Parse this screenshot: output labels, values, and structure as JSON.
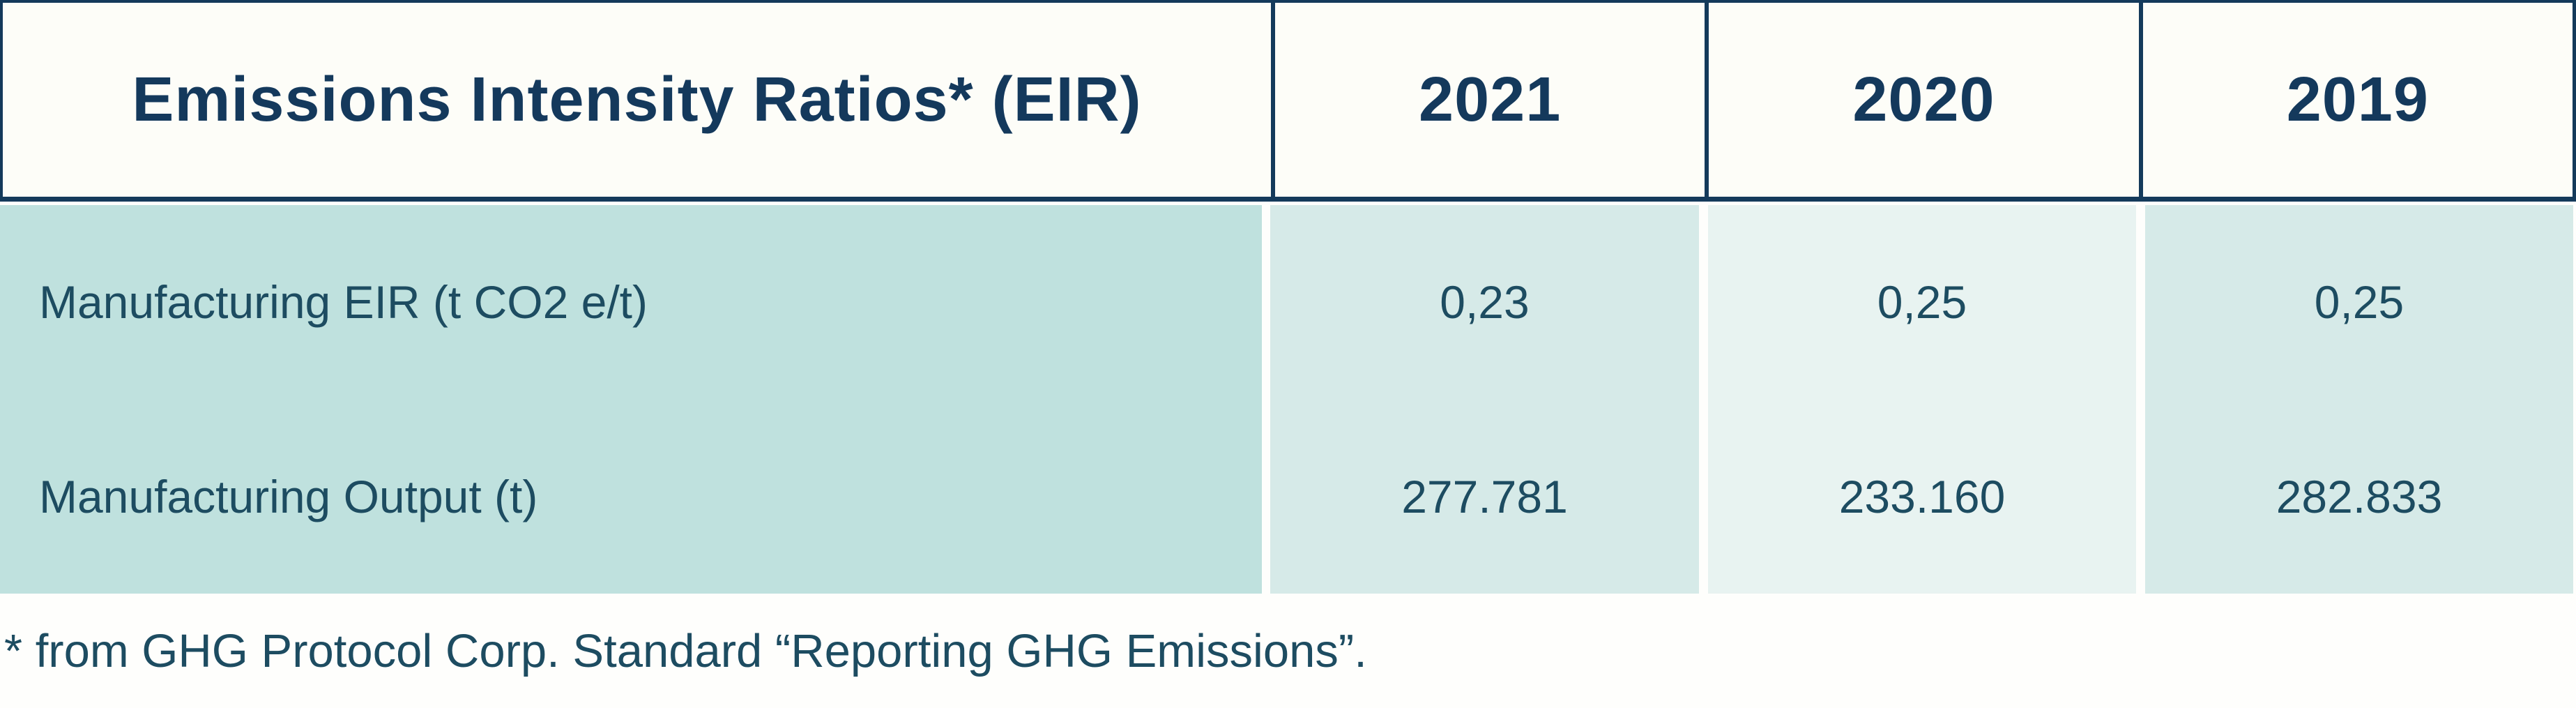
{
  "colors": {
    "border_navy": "#143a5b",
    "header_text": "#14395c",
    "body_text": "#1d4c61",
    "header_bg": "#fdfdf8",
    "label_column_bg": "#bfe1de",
    "year_column_bg": "#d6eae8",
    "year_column_alt_bg": "#e8f3f1",
    "page_bg": "#fefefc"
  },
  "table": {
    "header": {
      "title": "Emissions Intensity Ratios* (EIR)",
      "years": [
        "2021",
        "2020",
        "2019"
      ]
    },
    "rows": [
      {
        "label": "Manufacturing EIR (t CO2 e/t)",
        "values": [
          "0,23",
          "0,25",
          "0,25"
        ]
      },
      {
        "label": "Manufacturing Output (t)",
        "values": [
          "277.781",
          "233.160",
          "282.833"
        ]
      }
    ],
    "footnote": "* from GHG Protocol Corp. Standard “Reporting GHG Emissions”."
  },
  "chart_data": {
    "type": "table",
    "title": "Emissions Intensity Ratios* (EIR)",
    "columns": [
      "Emissions Intensity Ratios* (EIR)",
      "2021",
      "2020",
      "2019"
    ],
    "rows": [
      [
        "Manufacturing EIR (t CO2 e/t)",
        "0,23",
        "0,25",
        "0,25"
      ],
      [
        "Manufacturing Output (t)",
        "277.781",
        "233.160",
        "282.833"
      ]
    ],
    "footnote": "* from GHG Protocol Corp. Standard “Reporting GHG Emissions”."
  }
}
